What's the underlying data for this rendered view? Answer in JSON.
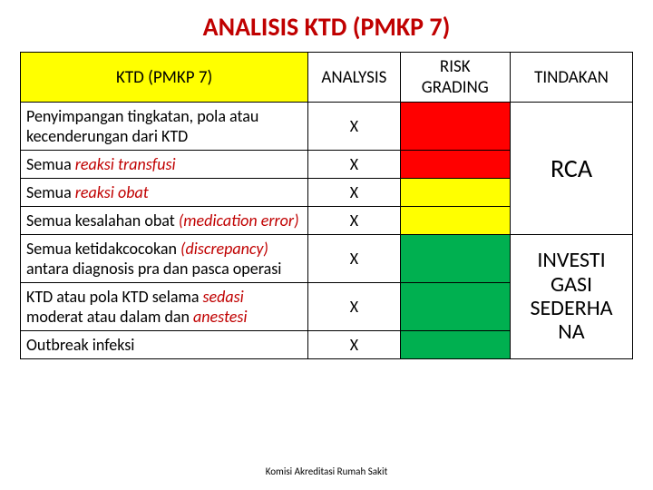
{
  "title": {
    "text": "ANALISIS KTD (PMKP 7)",
    "color": "#c00000",
    "fontsize": 28
  },
  "header": {
    "ktd": "KTD (PMKP 7)",
    "analysis": "ANALYSIS",
    "risk": "RISK GRADING",
    "tindakan": "TINDAKAN",
    "bg_ktd": "#ffff00",
    "bg_other": "#ffffff",
    "fontsize": 19
  },
  "rows": [
    {
      "ktd_pre": "Penyimpangan tingkatan, pola atau kecenderungan dari KTD",
      "ktd_accent": "",
      "ktd_post": "",
      "analysis": "X",
      "risk_bg": "#ff0000"
    },
    {
      "ktd_pre": "Semua ",
      "ktd_accent": "reaksi transfusi",
      "ktd_post": "",
      "analysis": "X",
      "risk_bg": "#ff0000"
    },
    {
      "ktd_pre": "Semua ",
      "ktd_accent": "reaksi obat",
      "ktd_post": "",
      "analysis": "X",
      "risk_bg": "#ffff00"
    },
    {
      "ktd_pre": "Semua kesalahan obat ",
      "ktd_accent": "(medication error)",
      "ktd_post": "",
      "analysis": "X",
      "risk_bg": "#ffff00"
    },
    {
      "ktd_pre": "Semua ketidakcocokan ",
      "ktd_accent": "(discrepancy)",
      "ktd_post": " antara diagnosis pra dan pasca operasi",
      "analysis": "X",
      "risk_bg": "#00b050"
    },
    {
      "ktd_pre": "KTD atau pola KTD selama ",
      "ktd_accent": "sedasi",
      "ktd_post": " moderat atau dalam dan ",
      "ktd_accent2": "anestesi",
      "analysis": "X",
      "risk_bg": "#00b050"
    },
    {
      "ktd_pre": "Outbreak infeksi",
      "ktd_accent": "",
      "ktd_post": "",
      "analysis": "X",
      "risk_bg": "#00b050"
    }
  ],
  "row_fontsize": 18,
  "accent_color": "#c00000",
  "actions": {
    "rca": {
      "text": "RCA",
      "fontsize": 28,
      "rowspan": 4
    },
    "investigasi": {
      "text": "INVESTI GASI SEDERHA NA",
      "fontsize": 24,
      "rowspan": 3
    }
  },
  "footer": "Komisi Akreditasi Rumah Sakit"
}
